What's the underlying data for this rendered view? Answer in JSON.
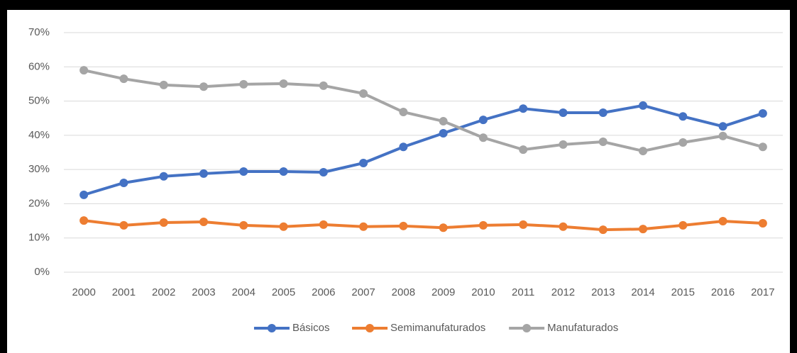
{
  "chart_data": {
    "type": "line",
    "categories": [
      "2000",
      "2001",
      "2002",
      "2003",
      "2004",
      "2005",
      "2006",
      "2007",
      "2008",
      "2009",
      "2010",
      "2011",
      "2012",
      "2013",
      "2014",
      "2015",
      "2016",
      "2017"
    ],
    "series": [
      {
        "name": "Básicos",
        "color": "#4472c4",
        "values": [
          22.6,
          26.1,
          28.0,
          28.8,
          29.4,
          29.4,
          29.2,
          31.9,
          36.6,
          40.6,
          44.5,
          47.8,
          46.6,
          46.6,
          48.7,
          45.5,
          42.6,
          46.4
        ]
      },
      {
        "name": "Semimanufaturados",
        "color": "#ed7d31",
        "values": [
          15.1,
          13.7,
          14.5,
          14.7,
          13.7,
          13.3,
          13.9,
          13.3,
          13.5,
          13.0,
          13.7,
          13.9,
          13.3,
          12.4,
          12.6,
          13.7,
          14.9,
          14.3
        ]
      },
      {
        "name": "Manufaturados",
        "color": "#a5a5a5",
        "values": [
          59.0,
          56.5,
          54.7,
          54.2,
          54.9,
          55.1,
          54.5,
          52.2,
          46.8,
          44.1,
          39.3,
          35.8,
          37.3,
          38.1,
          35.4,
          37.9,
          39.8,
          36.6
        ]
      }
    ],
    "ylim": [
      0,
      70
    ],
    "yticks": [
      {
        "value": 0,
        "label": "0%"
      },
      {
        "value": 10,
        "label": "10%"
      },
      {
        "value": 20,
        "label": "20%"
      },
      {
        "value": 30,
        "label": "30%"
      },
      {
        "value": 40,
        "label": "40%"
      },
      {
        "value": 50,
        "label": "50%"
      },
      {
        "value": 60,
        "label": "60%"
      },
      {
        "value": 70,
        "label": "70%"
      }
    ],
    "grid": true,
    "legend": "bottom"
  }
}
